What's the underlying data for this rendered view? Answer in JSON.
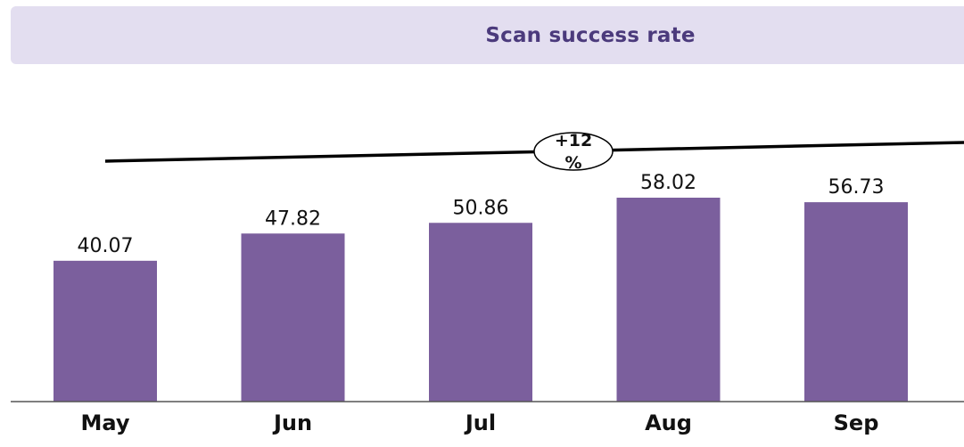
{
  "header": {
    "title": "Scan success rate"
  },
  "trend": {
    "badge_line1": "+12",
    "badge_line2": "%"
  },
  "colors": {
    "bar": "#7b5f9d",
    "title_bar_bg": "#e3def0",
    "title_text": "#4b3a7c"
  },
  "chart_data": {
    "type": "bar",
    "title": "Scan success rate",
    "xlabel": "",
    "ylabel": "",
    "categories": [
      "May",
      "Jun",
      "Jul",
      "Aug",
      "Sep"
    ],
    "values": [
      40.07,
      47.82,
      50.86,
      58.02,
      56.73
    ],
    "value_labels": [
      "40.07",
      "47.82",
      "50.86",
      "58.02",
      "56.73"
    ],
    "ylim": [
      0,
      58.02
    ],
    "grid": false,
    "legend": "none",
    "annotations": [
      "+12 %"
    ]
  }
}
